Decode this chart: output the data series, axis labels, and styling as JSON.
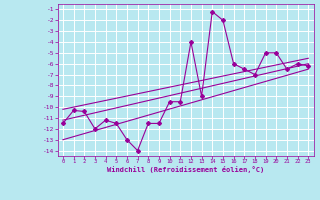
{
  "xlabel": "Windchill (Refroidissement éolien,°C)",
  "background_color": "#b8e8f0",
  "grid_color": "#ffffff",
  "line_color": "#990099",
  "xlim": [
    -0.5,
    23.5
  ],
  "ylim": [
    -14.5,
    -0.5
  ],
  "xticks": [
    0,
    1,
    2,
    3,
    4,
    5,
    6,
    7,
    8,
    9,
    10,
    11,
    12,
    13,
    14,
    15,
    16,
    17,
    18,
    19,
    20,
    21,
    22,
    23
  ],
  "yticks": [
    -1,
    -2,
    -3,
    -4,
    -5,
    -6,
    -7,
    -8,
    -9,
    -10,
    -11,
    -12,
    -13,
    -14
  ],
  "data_x": [
    0,
    1,
    2,
    3,
    4,
    5,
    6,
    7,
    8,
    9,
    10,
    11,
    12,
    13,
    14,
    15,
    16,
    17,
    18,
    19,
    20,
    21,
    22,
    23
  ],
  "data_y": [
    -11.5,
    -10.3,
    -10.4,
    -12.0,
    -11.2,
    -11.5,
    -13.0,
    -14.0,
    -11.5,
    -11.5,
    -9.5,
    -9.5,
    -4.0,
    -9.0,
    -1.2,
    -2.0,
    -6.0,
    -6.5,
    -7.0,
    -5.0,
    -5.0,
    -6.5,
    -6.0,
    -6.2
  ],
  "line1_x": [
    0,
    23
  ],
  "line1_y": [
    -11.2,
    -6.0
  ],
  "line2_x": [
    0,
    23
  ],
  "line2_y": [
    -10.2,
    -5.5
  ],
  "line3_x": [
    0,
    23
  ],
  "line3_y": [
    -13.0,
    -6.5
  ]
}
